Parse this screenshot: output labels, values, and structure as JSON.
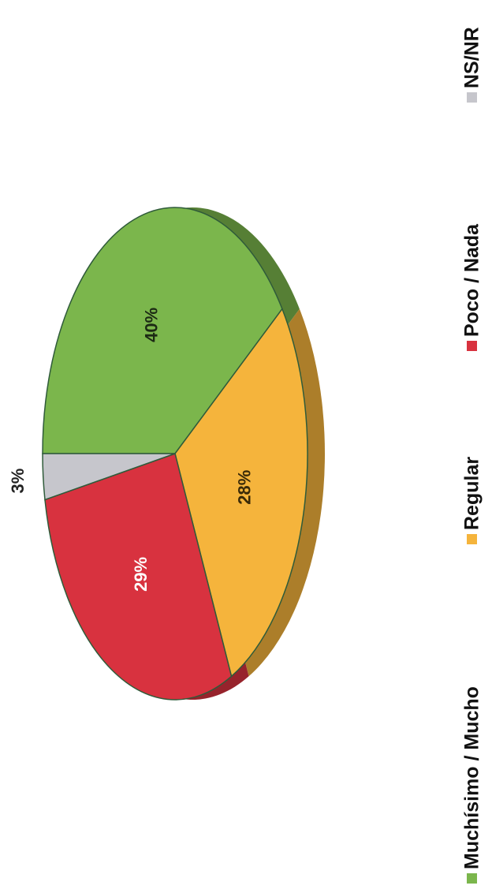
{
  "chart_data": {
    "type": "pie",
    "categories": [
      "Muchísimo / Mucho",
      "Regular",
      "Poco / Nada",
      "NS/NR"
    ],
    "values": [
      40,
      28,
      29,
      3
    ],
    "value_labels": [
      "40%",
      "28%",
      "29%",
      "3%"
    ],
    "colors": [
      "#7bb64c",
      "#f5b43c",
      "#d8323f",
      "#c6c6cc"
    ],
    "legend": "bottom"
  }
}
